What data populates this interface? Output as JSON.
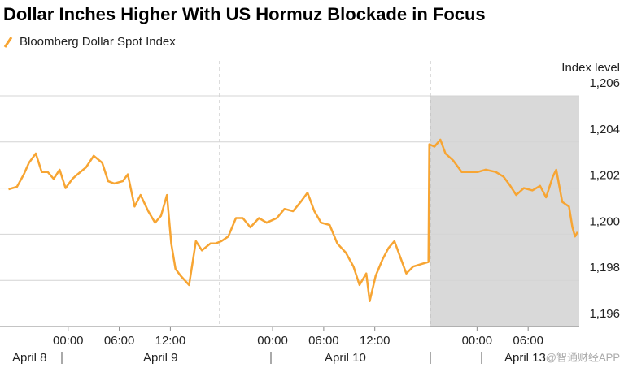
{
  "chart_data": {
    "type": "line",
    "title": "Dollar Inches Higher With US Hormuz Blockade in Focus",
    "y_axis_label": "Index level",
    "date_labels": [
      "April 8",
      "April 9",
      "April 10",
      "April 13"
    ],
    "watermark": "@智通财经APP",
    "xlim": [
      -8,
      60
    ],
    "xticks": [
      {
        "value": 0,
        "label": "00:00"
      },
      {
        "value": 6,
        "label": "06:00"
      },
      {
        "value": 12,
        "label": "12:00"
      },
      {
        "value": 24,
        "label": "00:00"
      },
      {
        "value": 30,
        "label": "06:00"
      },
      {
        "value": 36,
        "label": "12:00"
      },
      {
        "value": 48,
        "label": "00:00"
      },
      {
        "value": 54,
        "label": "06:00"
      }
    ],
    "ylim": [
      1196,
      1206
    ],
    "yticks": [
      {
        "value": 1196,
        "label": "1,196"
      },
      {
        "value": 1198,
        "label": "1,198"
      },
      {
        "value": 1200,
        "label": "1,200"
      },
      {
        "value": 1202,
        "label": "1,202"
      },
      {
        "value": 1204,
        "label": "1,204"
      },
      {
        "value": 1206,
        "label": "1,206"
      }
    ],
    "grid": true,
    "series": [
      {
        "name": "Bloomberg Dollar Spot Index",
        "color": "#f7a533",
        "x": [
          -7.0,
          -6.0,
          -5.2,
          -4.6,
          -3.8,
          -3.1,
          -2.4,
          -1.7,
          -1.0,
          -0.3,
          0.5,
          1.1,
          2.1,
          3.0,
          4.0,
          4.7,
          5.4,
          6.4,
          7.0,
          7.8,
          8.5,
          9.4,
          10.2,
          10.9,
          11.6,
          12.1,
          12.6,
          13.2,
          14.2,
          15.0,
          15.7,
          16.7,
          17.3,
          18.0,
          18.8,
          19.7,
          20.5,
          21.4,
          22.4,
          23.3,
          24.5,
          25.4,
          26.4,
          27.3,
          28.1,
          28.9,
          29.7,
          30.7,
          31.6,
          32.6,
          33.5,
          34.2,
          35.0,
          35.4,
          36.1,
          36.9,
          37.6,
          38.3,
          39.0,
          39.7,
          40.5,
          41.4,
          42.3,
          42.4,
          43.0,
          43.7,
          44.3,
          45.2,
          46.2,
          47.1,
          48.1,
          49.0,
          50.2,
          51.1,
          51.9,
          52.6,
          53.5,
          54.5,
          55.4,
          56.1,
          56.9,
          57.3,
          58.0,
          58.8,
          59.2,
          59.5,
          59.8
        ],
        "values": [
          1201.95,
          1202.06,
          1202.6,
          1203.1,
          1203.5,
          1202.7,
          1202.7,
          1202.4,
          1202.8,
          1202.0,
          1202.4,
          1202.6,
          1202.9,
          1203.4,
          1203.1,
          1202.3,
          1202.2,
          1202.3,
          1202.6,
          1201.2,
          1201.7,
          1201.0,
          1200.5,
          1200.8,
          1201.7,
          1199.6,
          1198.5,
          1198.2,
          1197.8,
          1199.7,
          1199.3,
          1199.6,
          1199.6,
          1199.7,
          1199.9,
          1200.7,
          1200.7,
          1200.3,
          1200.7,
          1200.5,
          1200.7,
          1201.1,
          1201.0,
          1201.4,
          1201.8,
          1201.0,
          1200.5,
          1200.4,
          1199.6,
          1199.2,
          1198.6,
          1197.8,
          1198.3,
          1197.1,
          1198.2,
          1198.9,
          1199.4,
          1199.7,
          1199.0,
          1198.3,
          1198.6,
          1198.7,
          1198.8,
          1203.9,
          1203.8,
          1204.1,
          1203.5,
          1203.2,
          1202.7,
          1202.7,
          1202.7,
          1202.8,
          1202.7,
          1202.5,
          1202.1,
          1201.7,
          1202.0,
          1201.9,
          1202.1,
          1201.6,
          1202.5,
          1202.8,
          1201.4,
          1201.2,
          1200.3,
          1199.9,
          1200.1
        ]
      }
    ]
  }
}
